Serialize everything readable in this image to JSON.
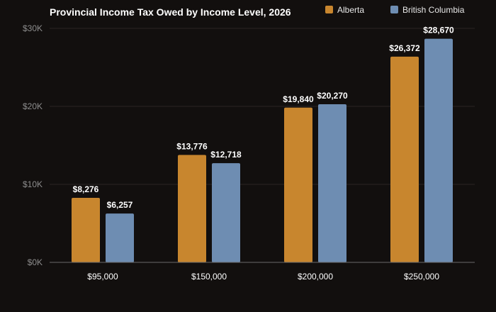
{
  "chart_data": {
    "type": "bar",
    "title": "Provincial Income Tax Owed by Income Level, 2026",
    "categories": [
      "$95,000",
      "$150,000",
      "$200,000",
      "$250,000"
    ],
    "series": [
      {
        "name": "Alberta",
        "color": "#c8862e",
        "values": [
          8276,
          13776,
          19840,
          26372
        ],
        "labels": [
          "$8,276",
          "$13,776",
          "$19,840",
          "$26,372"
        ]
      },
      {
        "name": "British Columbia",
        "color": "#6e8db2",
        "values": [
          6257,
          12718,
          20270,
          28670
        ],
        "labels": [
          "$6,257",
          "$12,718",
          "$20,270",
          "$28,670"
        ]
      }
    ],
    "ylim": [
      0,
      30000
    ],
    "yticks": [
      {
        "value": 0,
        "label": "$0K"
      },
      {
        "value": 10000,
        "label": "$10K"
      },
      {
        "value": 20000,
        "label": "$20K"
      },
      {
        "value": 30000,
        "label": "$30K"
      }
    ],
    "grid": true,
    "legend_position": "top-right",
    "background": "#120f0e"
  }
}
